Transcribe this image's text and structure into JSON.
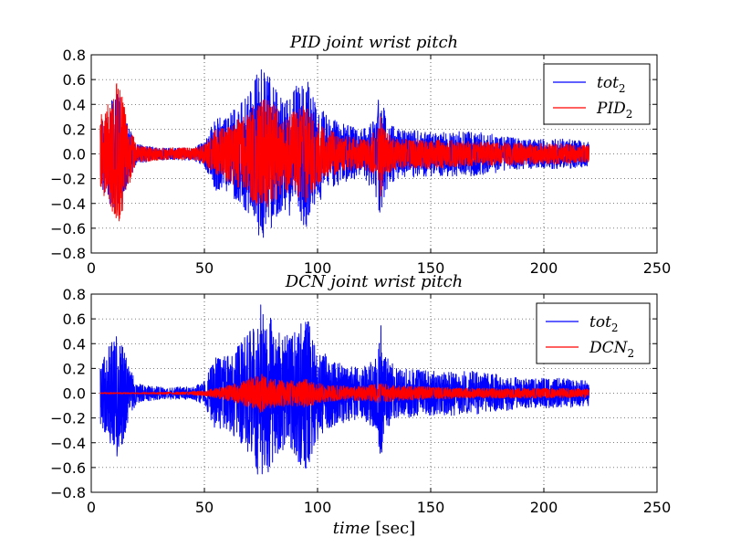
{
  "chart_data": [
    {
      "type": "line",
      "title": "PID  joint wrist pitch",
      "xlabel": "",
      "xlim": [
        0,
        250
      ],
      "ylim": [
        -0.8,
        0.8
      ],
      "xticks": [
        "0",
        "50",
        "100",
        "150",
        "200",
        "250"
      ],
      "yticks": [
        "0.8",
        "0.6",
        "0.4",
        "0.2",
        "0.0",
        "−0.2",
        "−0.4",
        "−0.6",
        "−0.8"
      ],
      "grid": true,
      "legend_position": "top-right",
      "x_range_of_signal": [
        4,
        220
      ],
      "series": [
        {
          "name": "tot",
          "subscript": "2",
          "color": "#0000ff",
          "amplitude_envelope": [
            [
              4,
              0.25
            ],
            [
              8,
              0.4
            ],
            [
              12,
              0.55
            ],
            [
              16,
              0.25
            ],
            [
              20,
              0.08
            ],
            [
              30,
              0.05
            ],
            [
              45,
              0.05
            ],
            [
              50,
              0.1
            ],
            [
              55,
              0.3
            ],
            [
              60,
              0.3
            ],
            [
              65,
              0.4
            ],
            [
              70,
              0.5
            ],
            [
              75,
              0.72
            ],
            [
              80,
              0.6
            ],
            [
              85,
              0.45
            ],
            [
              90,
              0.55
            ],
            [
              95,
              0.62
            ],
            [
              100,
              0.4
            ],
            [
              105,
              0.3
            ],
            [
              110,
              0.25
            ],
            [
              115,
              0.22
            ],
            [
              120,
              0.2
            ],
            [
              125,
              0.3
            ],
            [
              128,
              0.55
            ],
            [
              130,
              0.3
            ],
            [
              135,
              0.2
            ],
            [
              150,
              0.18
            ],
            [
              170,
              0.18
            ],
            [
              190,
              0.12
            ],
            [
              210,
              0.12
            ],
            [
              220,
              0.1
            ]
          ]
        },
        {
          "name": "PID",
          "subscript": "2",
          "color": "#ff0000",
          "amplitude_envelope": [
            [
              4,
              0.3
            ],
            [
              8,
              0.45
            ],
            [
              12,
              0.6
            ],
            [
              16,
              0.3
            ],
            [
              20,
              0.07
            ],
            [
              30,
              0.05
            ],
            [
              45,
              0.05
            ],
            [
              50,
              0.08
            ],
            [
              55,
              0.2
            ],
            [
              60,
              0.22
            ],
            [
              65,
              0.28
            ],
            [
              70,
              0.35
            ],
            [
              75,
              0.48
            ],
            [
              80,
              0.42
            ],
            [
              85,
              0.3
            ],
            [
              90,
              0.35
            ],
            [
              95,
              0.4
            ],
            [
              100,
              0.25
            ],
            [
              105,
              0.2
            ],
            [
              110,
              0.15
            ],
            [
              115,
              0.14
            ],
            [
              120,
              0.13
            ],
            [
              125,
              0.18
            ],
            [
              128,
              0.35
            ],
            [
              130,
              0.18
            ],
            [
              135,
              0.12
            ],
            [
              150,
              0.12
            ],
            [
              170,
              0.1
            ],
            [
              190,
              0.09
            ],
            [
              210,
              0.08
            ],
            [
              220,
              0.07
            ]
          ]
        }
      ]
    },
    {
      "type": "line",
      "title": "DCN  joint wrist pitch",
      "xlabel": "time [sec]",
      "xlim": [
        0,
        250
      ],
      "ylim": [
        -0.8,
        0.8
      ],
      "xticks": [
        "0",
        "50",
        "100",
        "150",
        "200",
        "250"
      ],
      "yticks": [
        "0.8",
        "0.6",
        "0.4",
        "0.2",
        "0.0",
        "−0.2",
        "−0.4",
        "−0.6",
        "−0.8"
      ],
      "grid": true,
      "legend_position": "top-right",
      "x_range_of_signal": [
        4,
        220
      ],
      "series": [
        {
          "name": "tot",
          "subscript": "2",
          "color": "#0000ff",
          "amplitude_envelope": [
            [
              4,
              0.25
            ],
            [
              8,
              0.4
            ],
            [
              12,
              0.55
            ],
            [
              16,
              0.25
            ],
            [
              20,
              0.08
            ],
            [
              30,
              0.05
            ],
            [
              45,
              0.05
            ],
            [
              50,
              0.1
            ],
            [
              55,
              0.3
            ],
            [
              60,
              0.3
            ],
            [
              65,
              0.4
            ],
            [
              70,
              0.5
            ],
            [
              75,
              0.72
            ],
            [
              80,
              0.6
            ],
            [
              85,
              0.45
            ],
            [
              90,
              0.55
            ],
            [
              95,
              0.62
            ],
            [
              100,
              0.4
            ],
            [
              105,
              0.3
            ],
            [
              110,
              0.25
            ],
            [
              115,
              0.22
            ],
            [
              120,
              0.2
            ],
            [
              125,
              0.3
            ],
            [
              128,
              0.55
            ],
            [
              130,
              0.3
            ],
            [
              135,
              0.2
            ],
            [
              150,
              0.18
            ],
            [
              170,
              0.18
            ],
            [
              190,
              0.12
            ],
            [
              210,
              0.12
            ],
            [
              220,
              0.1
            ]
          ]
        },
        {
          "name": "DCN",
          "subscript": "2",
          "color": "#ff0000",
          "amplitude_envelope": [
            [
              4,
              0.005
            ],
            [
              20,
              0.005
            ],
            [
              40,
              0.01
            ],
            [
              50,
              0.02
            ],
            [
              60,
              0.06
            ],
            [
              70,
              0.12
            ],
            [
              75,
              0.17
            ],
            [
              80,
              0.12
            ],
            [
              90,
              0.1
            ],
            [
              95,
              0.12
            ],
            [
              100,
              0.08
            ],
            [
              110,
              0.06
            ],
            [
              120,
              0.06
            ],
            [
              128,
              0.08
            ],
            [
              135,
              0.06
            ],
            [
              150,
              0.05
            ],
            [
              170,
              0.04
            ],
            [
              200,
              0.04
            ],
            [
              220,
              0.035
            ]
          ]
        }
      ]
    }
  ]
}
